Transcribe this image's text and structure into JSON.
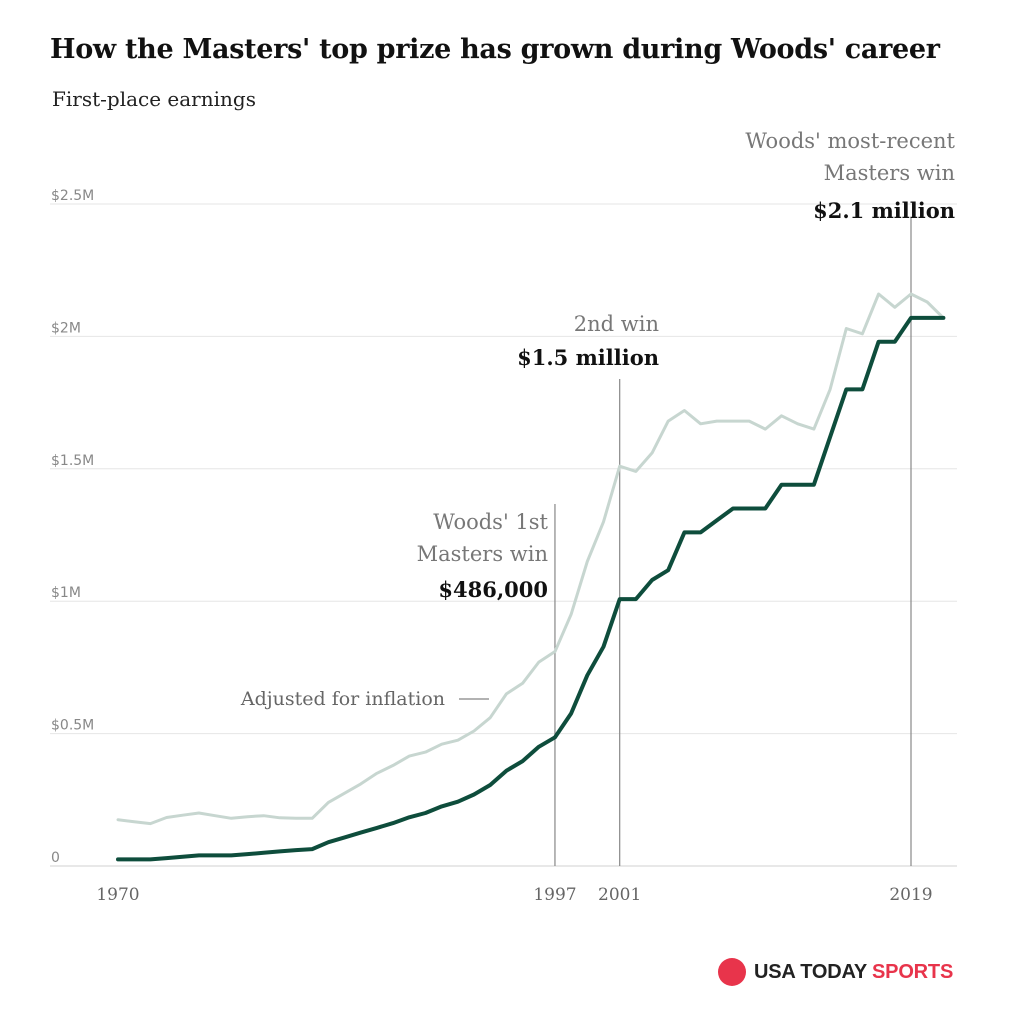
{
  "colors": {
    "nominal_line": "#0e4d3c",
    "inflation_line": "#c7d6d0",
    "grid": "#e6e6e6",
    "marker_line": "#888888",
    "brand_red": "#e8344b"
  },
  "chart_data": {
    "type": "line",
    "title": "How the Masters' top prize has grown during Woods' career",
    "subtitle": "First-place earnings",
    "ylim": [
      0,
      2500000
    ],
    "yticks": [
      {
        "value": 0,
        "label": "0"
      },
      {
        "value": 500000,
        "label": "$0.5M"
      },
      {
        "value": 1000000,
        "label": "$1M"
      },
      {
        "value": 1500000,
        "label": "$1.5M"
      },
      {
        "value": 2000000,
        "label": "$2M"
      },
      {
        "value": 2500000,
        "label": "$2.5M"
      }
    ],
    "xlim": [
      1970,
      2020
    ],
    "xticks": [
      {
        "value": 1970,
        "label": "1970"
      },
      {
        "value": 1997,
        "label": "1997"
      },
      {
        "value": 2001,
        "label": "2001"
      },
      {
        "value": 2019,
        "label": "2019"
      }
    ],
    "grid": true,
    "x": [
      1970,
      1971,
      1972,
      1973,
      1974,
      1975,
      1976,
      1977,
      1978,
      1979,
      1980,
      1981,
      1982,
      1983,
      1984,
      1985,
      1986,
      1987,
      1988,
      1989,
      1990,
      1991,
      1992,
      1993,
      1994,
      1995,
      1996,
      1997,
      1998,
      1999,
      2000,
      2001,
      2002,
      2003,
      2004,
      2005,
      2006,
      2007,
      2008,
      2009,
      2010,
      2011,
      2012,
      2013,
      2014,
      2015,
      2016,
      2017,
      2018,
      2019,
      2020,
      2021
    ],
    "series": [
      {
        "name": "",
        "values": [
          25000,
          25000,
          25000,
          30000,
          35000,
          40000,
          40000,
          40000,
          45000,
          50000,
          55000,
          60000,
          64000,
          90000,
          108000,
          126000,
          144000,
          162000,
          183800,
          200000,
          225000,
          243000,
          270000,
          306000,
          360000,
          396000,
          450000,
          486000,
          576000,
          720000,
          828000,
          1008000,
          1008000,
          1080000,
          1117000,
          1260000,
          1260000,
          1305000,
          1350000,
          1350000,
          1350000,
          1440000,
          1440000,
          1440000,
          1620000,
          1800000,
          1800000,
          1980000,
          1980000,
          2070000,
          2070000,
          2070000
        ]
      },
      {
        "name": "Adjusted for inflation",
        "values": [
          175000,
          167000,
          160000,
          183000,
          192000,
          200000,
          190000,
          180000,
          186000,
          190000,
          182000,
          180000,
          180000,
          240000,
          275000,
          310000,
          350000,
          380000,
          415000,
          430000,
          460000,
          475000,
          510000,
          560000,
          650000,
          690000,
          770000,
          810000,
          950000,
          1150000,
          1300000,
          1510000,
          1490000,
          1560000,
          1680000,
          1720000,
          1670000,
          1680000,
          1680000,
          1680000,
          1650000,
          1700000,
          1670000,
          1650000,
          1800000,
          2030000,
          2010000,
          2160000,
          2110000,
          2160000,
          2130000,
          2070000
        ]
      }
    ],
    "annotations": [
      {
        "year": 1997,
        "lines": [
          "Woods' 1st",
          "Masters win"
        ],
        "value_label": "$486,000"
      },
      {
        "year": 2001,
        "lines": [
          "2nd win"
        ],
        "value_label": "$1.5 million"
      },
      {
        "year": 2019,
        "lines": [
          "Woods' most-recent",
          "Masters win"
        ],
        "value_label": "$2.1 million"
      }
    ],
    "inflation_label": "Adjusted for inflation"
  },
  "branding": {
    "logo_main": "USA TODAY",
    "logo_accent": "SPORTS"
  }
}
